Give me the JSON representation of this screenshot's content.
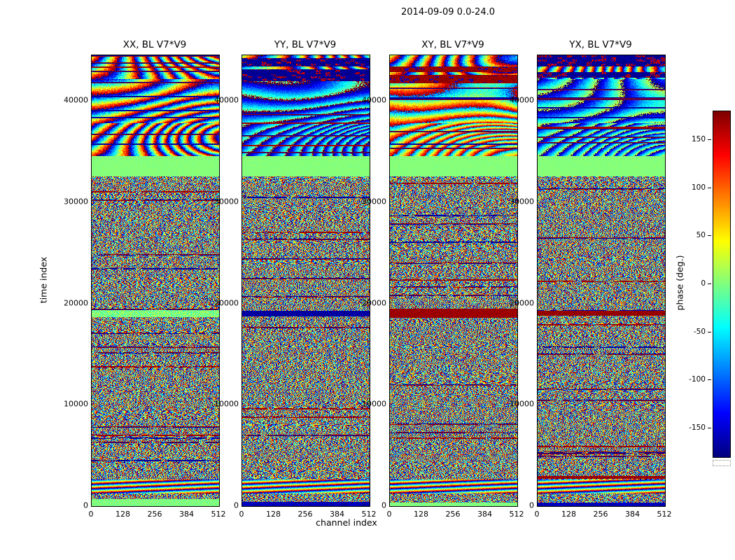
{
  "figure": {
    "background": "#ffffff"
  },
  "chart_data": {
    "type": "heatmap",
    "title": "2014-09-09 0.0-24.0",
    "colormap": "jet",
    "xlabel": "channel index",
    "ylabel": "time index",
    "x_ticks": [
      0,
      128,
      256,
      384,
      512
    ],
    "y_ticks": [
      0,
      10000,
      20000,
      30000,
      40000
    ],
    "xlim": [
      0,
      512
    ],
    "ylim": [
      0,
      44500
    ],
    "grid": false,
    "colorbar": {
      "label": "phase (deg.)",
      "ticks": [
        150,
        100,
        50,
        0,
        -50,
        -100,
        -150
      ],
      "vmin": -180,
      "vmax": 180,
      "location": "right"
    },
    "panels": [
      {
        "key": "XX",
        "title": "XX, BL V7*V9",
        "seed": 11,
        "noise_bias": 0,
        "top": {
          "bias": 0,
          "squeeze": 1.0,
          "dot_style": "none",
          "dot_start": 99999
        },
        "bands": [
          {
            "t0": 0,
            "t1": 750,
            "mode": "solid",
            "phase": 0,
            "jitter": 18
          },
          {
            "t0": 1250,
            "t1": 2650,
            "mode": "rainbow"
          },
          {
            "t0": 18700,
            "t1": 19350,
            "mode": "solid",
            "phase": 0,
            "jitter": 60
          },
          {
            "t0": 32600,
            "t1": 34600,
            "mode": "solid",
            "phase": 2,
            "jitter": 10
          }
        ]
      },
      {
        "key": "YY",
        "title": "YY, BL V7*V9",
        "seed": 23,
        "noise_bias": 0,
        "top": {
          "bias": -100,
          "squeeze": 0.55,
          "dot_style": "blue",
          "dot_start": 42000
        },
        "bands": [
          {
            "t0": 0,
            "t1": 450,
            "mode": "solid",
            "phase": -160,
            "jitter": 40
          },
          {
            "t0": 1250,
            "t1": 2650,
            "mode": "rainbow"
          },
          {
            "t0": 18750,
            "t1": 19300,
            "mode": "solid",
            "phase": -168,
            "jitter": 26
          },
          {
            "t0": 32600,
            "t1": 34600,
            "mode": "solid",
            "phase": 2,
            "jitter": 10
          }
        ]
      },
      {
        "key": "XY",
        "title": "XY, BL V7*V9",
        "seed": 37,
        "noise_bias": 18,
        "top": {
          "bias": 40,
          "squeeze": 0.8,
          "dot_style": "red",
          "dot_start": 41800
        },
        "bands": [
          {
            "t0": 0,
            "t1": 400,
            "mode": "solid",
            "phase": 0,
            "jitter": 16
          },
          {
            "t0": 1250,
            "t1": 2650,
            "mode": "rainbow"
          },
          {
            "t0": 18600,
            "t1": 19500,
            "mode": "solid",
            "phase": 170,
            "jitter": 16
          },
          {
            "t0": 32600,
            "t1": 34600,
            "mode": "solid",
            "phase": 2,
            "jitter": 10
          }
        ]
      },
      {
        "key": "YX",
        "title": "YX, BL V7*V9",
        "seed": 49,
        "noise_bias": 0,
        "top": {
          "bias": -80,
          "squeeze": 0.6,
          "dot_style": "blue",
          "dot_start": 42300
        },
        "bands": [
          {
            "t0": 0,
            "t1": 350,
            "mode": "solid",
            "phase": -160,
            "jitter": 40
          },
          {
            "t0": 1250,
            "t1": 2650,
            "mode": "rainbow"
          },
          {
            "t0": 2700,
            "t1": 2980,
            "mode": "solid",
            "phase": 170,
            "jitter": 14
          },
          {
            "t0": 18800,
            "t1": 19300,
            "mode": "solid",
            "phase": 172,
            "jitter": 18
          },
          {
            "t0": 32600,
            "t1": 34600,
            "mode": "solid",
            "phase": 2,
            "jitter": 10
          }
        ]
      }
    ],
    "features": {
      "coherent_region_start": 34600,
      "flame_range": [
        37800,
        42200
      ],
      "notes": [
        "solid light-green band (phase ~0 deg) across all four panels at time ~32600-34600",
        "coherent diagonal rainbow phase fringes above time ~34600",
        "fine pseudo-random wrapped-phase noise below time ~32600 with horizontal streak structure",
        "rainbow fringe band near time ~1300-2650 in all panels",
        "dark-red saturated horizontal band near time ~19000, strongest in XY and YX",
        "speckled saturated rows at the very top: dark-red in XY, dark-blue in YY and YX"
      ]
    }
  }
}
